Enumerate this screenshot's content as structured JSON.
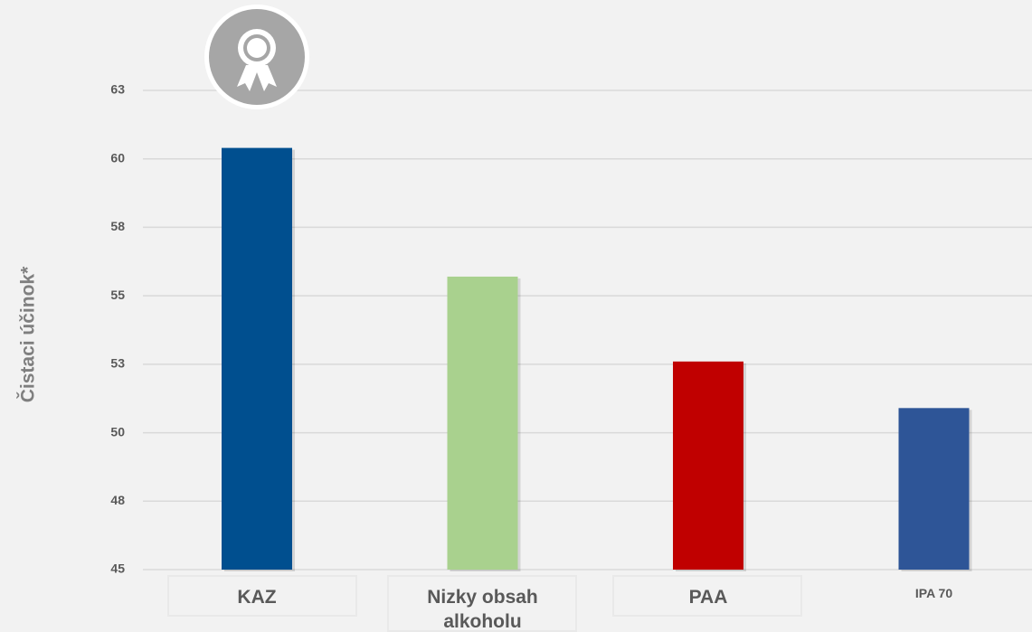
{
  "chart_data": {
    "type": "bar",
    "y_label": "Čistaci účinok*",
    "categories": [
      "KAZ",
      "Nizky obsah alkoholu",
      "PAA",
      "IPA 70"
    ],
    "values": [
      60.4,
      55.7,
      52.6,
      50.9
    ],
    "colors": [
      "#004f8f",
      "#a9d18e",
      "#c00000",
      "#2e5597"
    ],
    "ylim": [
      45,
      62.5
    ],
    "yticks": [
      45,
      {
        "value": 47.5,
        "label": "48"
      },
      50,
      {
        "value": 52.5,
        "label": "53"
      },
      55,
      {
        "value": 57.5,
        "label": "58"
      },
      60,
      {
        "value": 62.5,
        "label": "63"
      }
    ],
    "grid": true
  }
}
